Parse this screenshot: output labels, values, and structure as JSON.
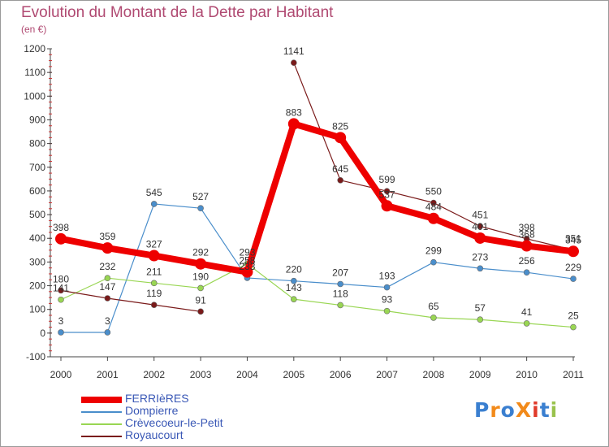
{
  "chart_data": {
    "type": "line",
    "title": "Evolution du Montant de la Dette par Habitant",
    "subtitle": "(en €)",
    "xlabel": "",
    "ylabel": "",
    "categories": [
      "2000",
      "2001",
      "2002",
      "2003",
      "2004",
      "2005",
      "2006",
      "2007",
      "2008",
      "2009",
      "2010",
      "2011"
    ],
    "yticks": [
      -100,
      0,
      100,
      200,
      300,
      400,
      500,
      600,
      700,
      800,
      900,
      1000,
      1100,
      1200
    ],
    "ylim": [
      -100,
      1200
    ],
    "grid": false,
    "legend_position": "bottom-left",
    "series": [
      {
        "name": "FERRIèRES",
        "color": "#ee0000",
        "style": "thick",
        "values": [
          398,
          359,
          327,
          292,
          258,
          883,
          825,
          537,
          484,
          401,
          368,
          345
        ]
      },
      {
        "name": "Dompierre",
        "color": "#4a8ecb",
        "style": "thin",
        "values": [
          3,
          3,
          545,
          527,
          233,
          220,
          207,
          193,
          299,
          273,
          256,
          229
        ]
      },
      {
        "name": "Crèvecoeur-le-Petit",
        "color": "#99d653",
        "style": "thin",
        "values": [
          141,
          232,
          211,
          190,
          293,
          143,
          118,
          93,
          65,
          57,
          41,
          25
        ]
      },
      {
        "name": "Royaucourt",
        "color": "#7a1a1a",
        "style": "thin",
        "values": [
          180,
          147,
          119,
          91,
          null,
          1141,
          645,
          599,
          550,
          451,
          398,
          351
        ]
      }
    ]
  },
  "logo": {
    "text": "ProXiti",
    "colors": [
      "#3a7fd0",
      "#f28a1a",
      "#3a7fd0",
      "#f28a1a",
      "#e03a2a",
      "#3a7fd0",
      "#99c24d"
    ]
  }
}
